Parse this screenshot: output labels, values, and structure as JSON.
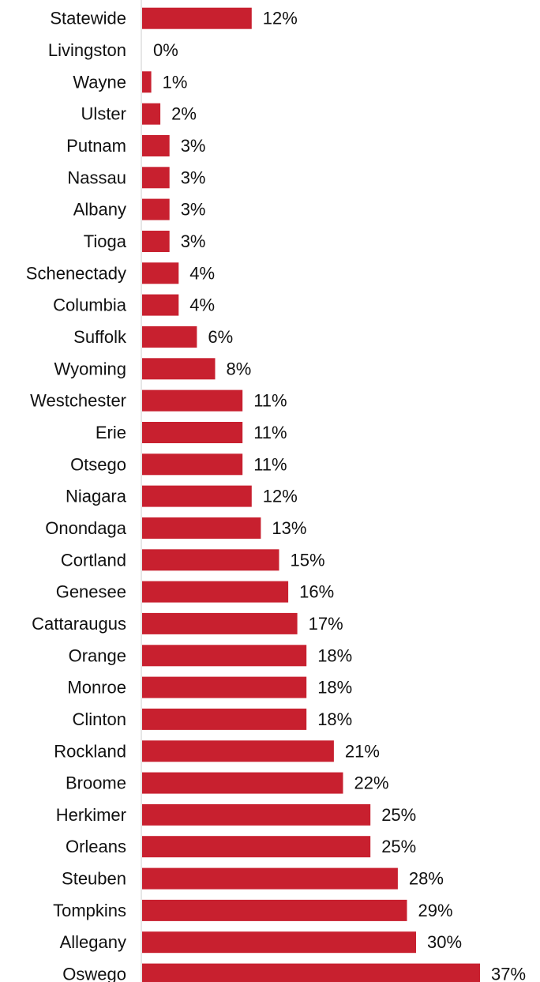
{
  "chart_data": {
    "type": "bar",
    "orientation": "horizontal",
    "categories": [
      "Statewide",
      "Livingston",
      "Wayne",
      "Ulster",
      "Putnam",
      "Nassau",
      "Albany",
      "Tioga",
      "Schenectady",
      "Columbia",
      "Suffolk",
      "Wyoming",
      "Westchester",
      "Erie",
      "Otsego",
      "Niagara",
      "Onondaga",
      "Cortland",
      "Genesee",
      "Cattaraugus",
      "Orange",
      "Monroe",
      "Clinton",
      "Rockland",
      "Broome",
      "Herkimer",
      "Orleans",
      "Steuben",
      "Tompkins",
      "Allegany",
      "Oswego"
    ],
    "values": [
      12,
      0,
      1,
      2,
      3,
      3,
      3,
      3,
      4,
      4,
      6,
      8,
      11,
      11,
      11,
      12,
      13,
      15,
      16,
      17,
      18,
      18,
      18,
      21,
      22,
      25,
      25,
      28,
      29,
      30,
      37
    ],
    "data_labels": [
      "12%",
      "0%",
      "1%",
      "2%",
      "3%",
      "3%",
      "3%",
      "3%",
      "4%",
      "4%",
      "6%",
      "8%",
      "11%",
      "11%",
      "11%",
      "12%",
      "13%",
      "15%",
      "16%",
      "17%",
      "18%",
      "18%",
      "18%",
      "21%",
      "22%",
      "25%",
      "25%",
      "28%",
      "29%",
      "30%",
      "37%"
    ],
    "title": "",
    "xlabel": "",
    "ylabel": "",
    "xlim": [
      0,
      37
    ],
    "grid": false,
    "legend": "none",
    "bar_color": "#C8202F",
    "axis_color": "#CCCCCC"
  }
}
